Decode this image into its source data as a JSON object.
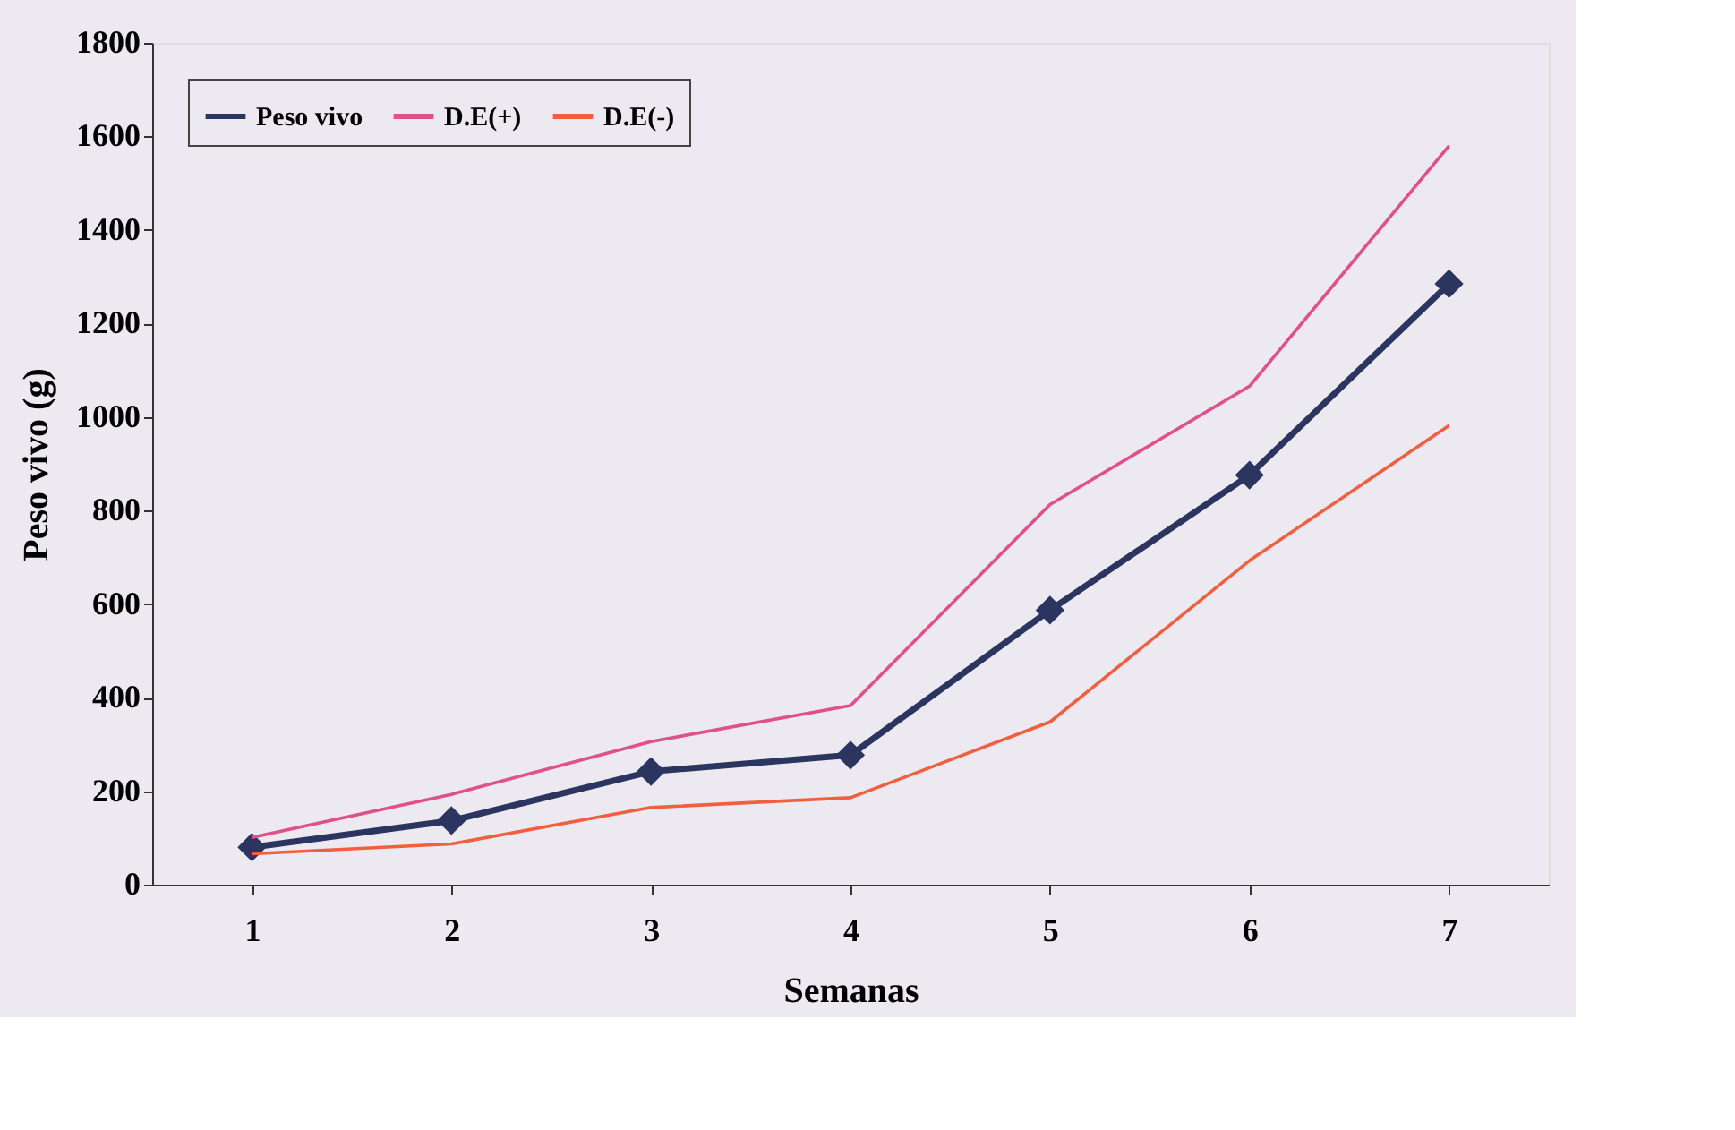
{
  "chart_data": {
    "type": "line",
    "xlabel": "Semanas",
    "ylabel": "Peso vivo (g)",
    "categories": [
      "1",
      "2",
      "3",
      "4",
      "5",
      "6",
      "7"
    ],
    "series": [
      {
        "name": "Peso vivo",
        "color": "#2b3560",
        "marker": "diamond",
        "values": [
          80,
          137,
          242,
          277,
          587,
          876,
          1285
        ]
      },
      {
        "name": "D.E(+)",
        "color": "#e0508a",
        "values": [
          101,
          193,
          306,
          383,
          813,
          1066,
          1580
        ]
      },
      {
        "name": "D.E(-)",
        "color": "#f06040",
        "values": [
          66,
          87,
          165,
          186,
          348,
          693,
          982
        ]
      }
    ],
    "ylim": [
      0,
      1800
    ],
    "yticks": [
      0,
      200,
      400,
      600,
      800,
      1000,
      1200,
      1400,
      1600,
      1800
    ],
    "grid": false,
    "legend": "top left",
    "line_style": "solid"
  }
}
